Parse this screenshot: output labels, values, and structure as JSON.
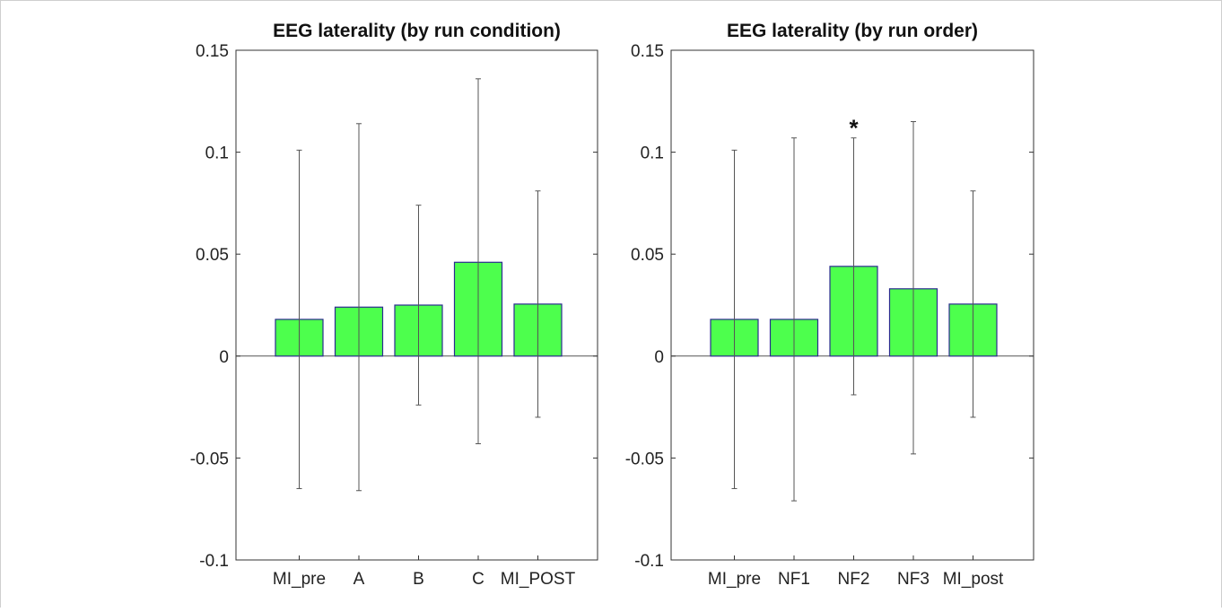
{
  "colors": {
    "bar_fill": "#4dff4d",
    "bar_edge": "#2b2b8f",
    "axis": "#333333",
    "zero_line": "#555555",
    "error_bar": "#555555",
    "frame": "#cfcfcf"
  },
  "chart_data": [
    {
      "type": "bar",
      "title": "EEG laterality (by run condition)",
      "categories": [
        "MI_pre",
        "A",
        "B",
        "C",
        "MI_POST"
      ],
      "series": [
        {
          "values": [
            0.018,
            0.024,
            0.025,
            0.046,
            0.0255
          ],
          "error_low": [
            -0.065,
            -0.066,
            -0.024,
            -0.043,
            -0.03
          ],
          "error_high": [
            0.101,
            0.114,
            0.074,
            0.136,
            0.081
          ]
        }
      ],
      "ylim": [
        -0.1,
        0.15
      ],
      "yticks": [
        0.15,
        0.1,
        0.05,
        0,
        -0.05,
        -0.1
      ],
      "ytick_labels": [
        "0.15",
        "0.1",
        "0.05",
        "0",
        "-0.05",
        "-0.1"
      ],
      "xlabel": "",
      "ylabel": "",
      "annotations": [],
      "grid": false,
      "legend": "none"
    },
    {
      "type": "bar",
      "title": "EEG laterality (by run order)",
      "categories": [
        "MI_pre",
        "NF1",
        "NF2",
        "NF3",
        "MI_post"
      ],
      "series": [
        {
          "values": [
            0.018,
            0.018,
            0.044,
            0.033,
            0.0255
          ],
          "error_low": [
            -0.065,
            -0.071,
            -0.019,
            -0.048,
            -0.03
          ],
          "error_high": [
            0.101,
            0.107,
            0.107,
            0.115,
            0.081
          ]
        }
      ],
      "ylim": [
        -0.1,
        0.15
      ],
      "yticks": [
        0.15,
        0.1,
        0.05,
        0,
        -0.05,
        -0.1
      ],
      "ytick_labels": [
        "0.15",
        "0.1",
        "0.05",
        "0",
        "-0.05",
        "-0.1"
      ],
      "xlabel": "",
      "ylabel": "",
      "annotations": [
        {
          "category": "NF2",
          "text": "*"
        }
      ],
      "grid": false,
      "legend": "none"
    }
  ]
}
